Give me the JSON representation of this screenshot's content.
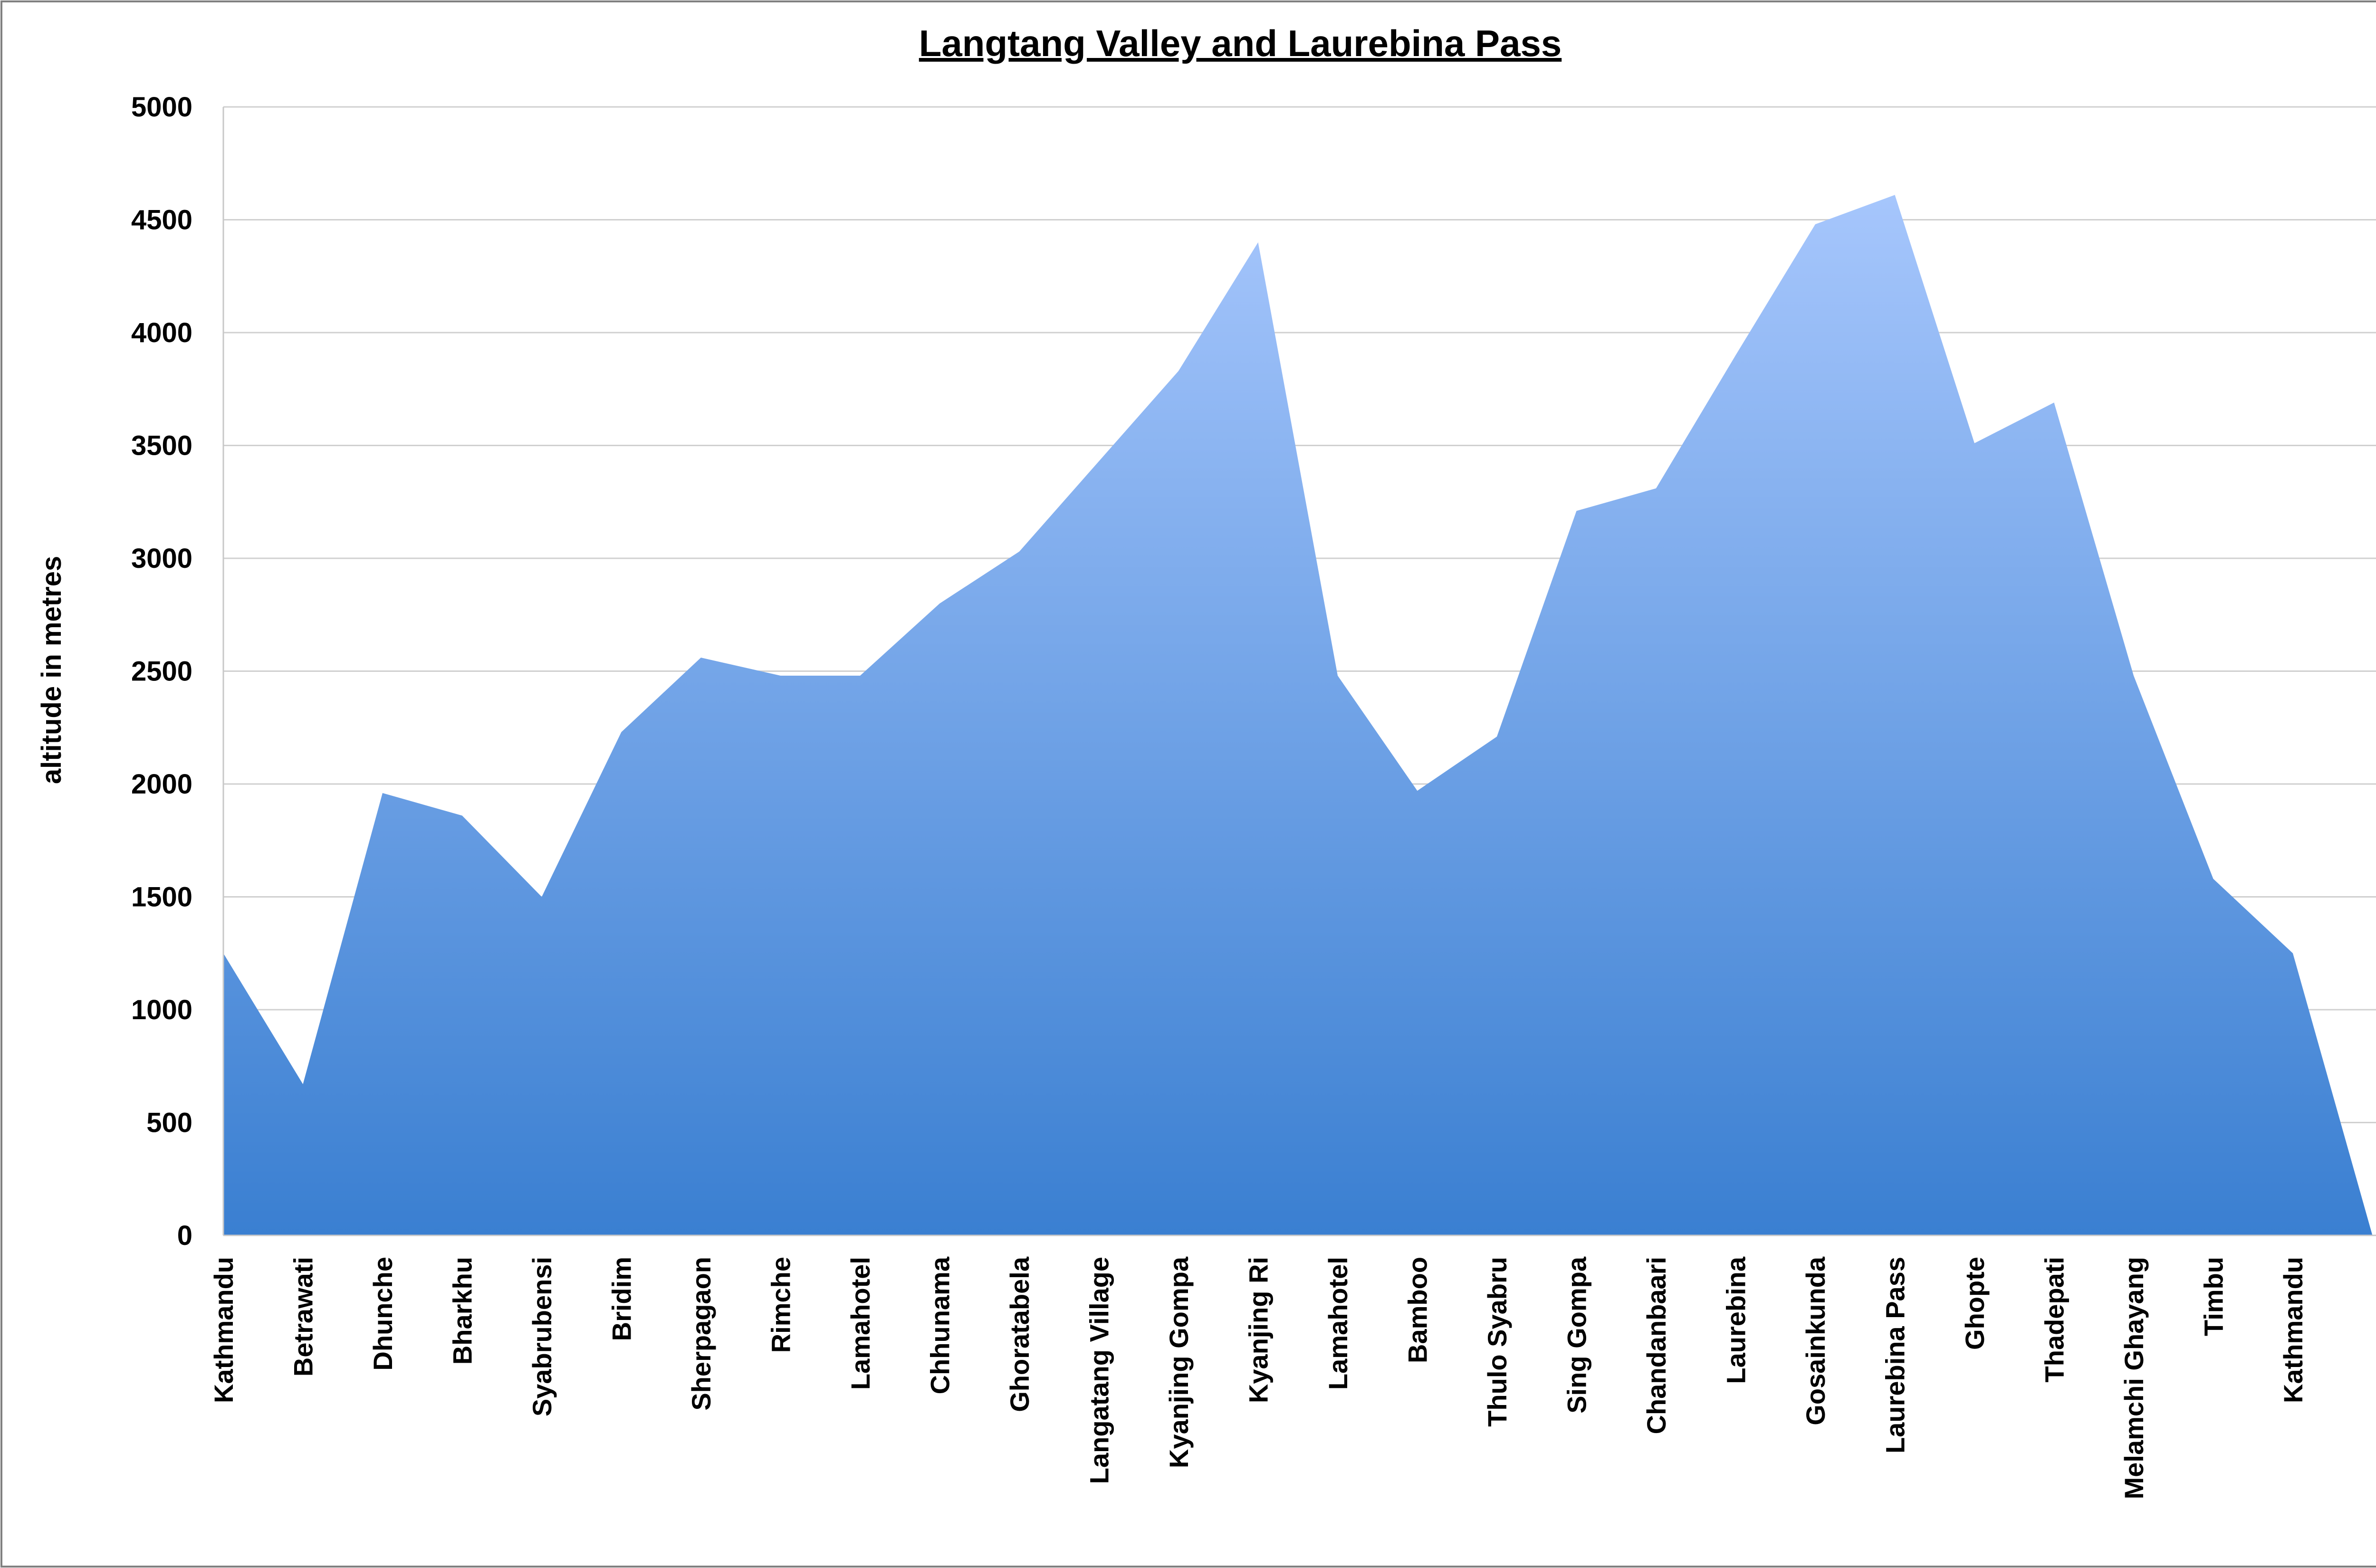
{
  "chart_data": {
    "type": "area",
    "title": "Langtang Valley and Laurebina Pass",
    "xlabel": "",
    "ylabel": "altitude in metres",
    "ylim": [
      0,
      5000
    ],
    "yticks": [
      0,
      500,
      1000,
      1500,
      2000,
      2500,
      3000,
      3500,
      4000,
      4500,
      5000
    ],
    "grid": true,
    "legend": "none",
    "categories": [
      "Kathmandu",
      "Betrawati",
      "Dhunche",
      "Bharkhu",
      "Syabrubensi",
      "Bridim",
      "Sherpagaon",
      "Rimche",
      "Lamahotel",
      "Chhunama",
      "Ghoratabela",
      "Langatang Village",
      "Kyanjing Gompa",
      "Kyanjing Ri",
      "Lamahotel",
      "Bamboo",
      "Thulo Syabru",
      "Sing Gompa",
      "Chandanbaari",
      "Laurebina",
      "Gosainkunda",
      "Laurebina Pass",
      "Ghopte",
      "Thadepati",
      "Melamchi Ghayang",
      "Timbu",
      "Kathmandu",
      ""
    ],
    "values": [
      1250,
      670,
      1960,
      1860,
      1500,
      2230,
      2560,
      2480,
      2480,
      2800,
      3030,
      3430,
      3830,
      4400,
      2480,
      1970,
      2210,
      3210,
      3310,
      3900,
      4480,
      4610,
      3510,
      3690,
      2480,
      1580,
      1250,
      0
    ],
    "colors": {
      "fill_top": "#a6c6fc",
      "fill_bottom": "#3a7fd1",
      "grid": "#d0d0d0",
      "axis": "#c8c8c8",
      "frame": "#808080",
      "text": "#000000"
    }
  }
}
